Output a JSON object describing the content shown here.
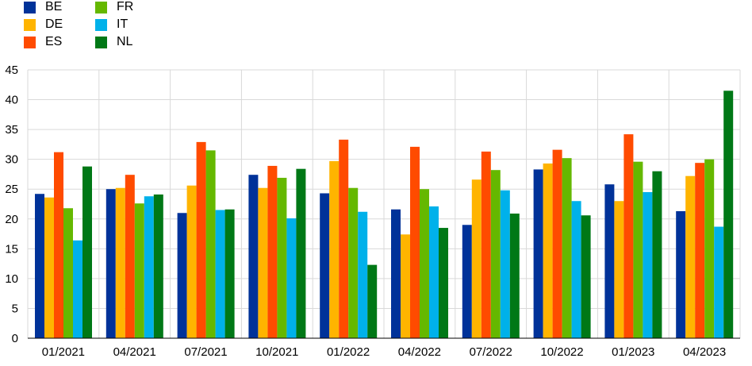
{
  "chart_data": {
    "type": "bar",
    "categories": [
      "01/2021",
      "04/2021",
      "07/2021",
      "10/2021",
      "01/2022",
      "04/2022",
      "07/2022",
      "10/2022",
      "01/2023",
      "04/2023"
    ],
    "series": [
      {
        "name": "BE",
        "color": "#003299",
        "values": [
          24.2,
          25.0,
          21.0,
          27.4,
          24.3,
          21.6,
          19.0,
          28.3,
          25.8,
          21.3
        ]
      },
      {
        "name": "DE",
        "color": "#FFB400",
        "values": [
          23.6,
          25.2,
          25.6,
          25.2,
          29.7,
          17.4,
          26.6,
          29.3,
          23.0,
          27.2
        ]
      },
      {
        "name": "ES",
        "color": "#FF4B00",
        "values": [
          31.2,
          27.4,
          32.9,
          28.9,
          33.3,
          32.1,
          31.3,
          31.6,
          34.2,
          29.4
        ]
      },
      {
        "name": "FR",
        "color": "#65B800",
        "values": [
          21.8,
          22.6,
          31.5,
          26.9,
          25.2,
          25.0,
          28.2,
          30.2,
          29.6,
          30.0
        ]
      },
      {
        "name": "IT",
        "color": "#00B1EA",
        "values": [
          16.4,
          23.8,
          21.5,
          20.1,
          21.2,
          22.1,
          24.8,
          23.0,
          24.5,
          18.7
        ]
      },
      {
        "name": "NL",
        "color": "#007816",
        "values": [
          28.8,
          24.1,
          21.6,
          28.4,
          12.3,
          18.5,
          20.9,
          20.6,
          28.0,
          41.5
        ]
      }
    ],
    "yticks": [
      "0",
      "5",
      "10",
      "15",
      "20",
      "25",
      "30",
      "35",
      "40",
      "45"
    ],
    "ylim": [
      0,
      45
    ],
    "grid": true,
    "legend_position": "top-left"
  }
}
